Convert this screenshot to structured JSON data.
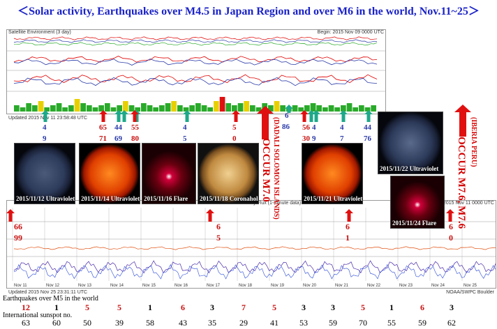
{
  "title": "＜Solar activity, Earthquakes over M4.5 in Japan Region and over M6 in the world, Nov.11~25＞",
  "top_panel": {
    "header_left": "Satellite Environment (3 day)",
    "header_right": "Begin: 2015 Nov 09 0000 UTC",
    "updated": "Updated 2015 Nov 11 23:58:48 UTC"
  },
  "bottom_panel": {
    "header_left": "GOES Xray Flux (1-minute data)",
    "header_right": "Begin: 2015 Nov 11 0000 UTC",
    "updated": "Updated 2015 Nov 25 23:31:11 UTC",
    "credit": "NOAA/SWPC Boulder"
  },
  "daily_pairs": [
    {
      "top": "4",
      "bottom": "9",
      "color": "blue"
    },
    {
      "top": "65",
      "bottom": "71",
      "color": "red"
    },
    {
      "top": "44",
      "bottom": "69",
      "color": "blue"
    },
    {
      "top": "55",
      "bottom": "80",
      "color": "red"
    },
    {
      "top": "4",
      "bottom": "5",
      "color": "blue"
    },
    {
      "top": "5",
      "bottom": "0",
      "color": "red"
    },
    {
      "top": "6",
      "bottom": "86",
      "color": "blue"
    },
    {
      "top": "56",
      "bottom": "30",
      "color": "red"
    },
    {
      "top": "4",
      "bottom": "9",
      "color": "blue"
    },
    {
      "top": "4",
      "bottom": "7",
      "color": "blue"
    },
    {
      "top": "44",
      "bottom": "76",
      "color": "blue"
    }
  ],
  "bottom_pairs": [
    {
      "top": "66",
      "bottom": "99",
      "color": "red"
    },
    {
      "top": "6",
      "bottom": "5",
      "color": "red"
    },
    {
      "top": "6",
      "bottom": "1",
      "color": "red"
    },
    {
      "top": "6",
      "bottom": "0",
      "color": "red"
    }
  ],
  "events": [
    {
      "text": "OCCUR M7.0",
      "location": "(DADALI SOLOMON ISLANDS)"
    },
    {
      "text": "OCCUR M7.6, M7.6",
      "location": "(IBERIA PERU)"
    }
  ],
  "images": [
    {
      "caption": "2015/11/12 Ultraviolet",
      "kind": "uv"
    },
    {
      "caption": "2015/11/14 Ultraviolet",
      "kind": "red"
    },
    {
      "caption": "2015/11/16 Flare",
      "kind": "flare"
    },
    {
      "caption": "2015/11/18 Coronahole",
      "kind": "corona"
    },
    {
      "caption": "2015/11/21 Ultraviolet",
      "kind": "red"
    },
    {
      "caption": "2015/11/22 Ultraviolet",
      "kind": "uv"
    },
    {
      "caption": "2015/11/24 Flare",
      "kind": "flare"
    }
  ],
  "chart_data": {
    "type": "table",
    "row_labels": [
      "Earthquakes over M5 in the world",
      "International sunspot no."
    ],
    "days": [
      "Nov 11",
      "Nov 12",
      "Nov 13",
      "Nov 14",
      "Nov 15",
      "Nov 16",
      "Nov 17",
      "Nov 18",
      "Nov 19",
      "Nov 20",
      "Nov 21",
      "Nov 22",
      "Nov 23",
      "Nov 24",
      "Nov 25"
    ],
    "earthquakes": [
      12,
      1,
      5,
      5,
      1,
      6,
      3,
      7,
      5,
      3,
      3,
      5,
      1,
      6,
      3
    ],
    "earthquake_highlight": [
      true,
      false,
      true,
      true,
      false,
      true,
      false,
      true,
      true,
      false,
      false,
      true,
      false,
      true,
      false
    ],
    "sunspot": [
      63,
      60,
      50,
      39,
      58,
      43,
      35,
      29,
      41,
      53,
      59,
      70,
      55,
      59,
      62
    ],
    "x_axis_labels": [
      "Nov 11",
      "Nov 12",
      "Nov 13",
      "Nov 14",
      "Nov 15",
      "Nov 16",
      "Nov 17",
      "Nov 18",
      "Nov 19",
      "Nov 20",
      "Nov 21",
      "Nov 22",
      "Nov 23",
      "Nov 24",
      "Nov 25"
    ],
    "kp_bars": [
      3,
      2,
      4,
      3,
      5,
      2,
      3,
      4,
      2,
      3,
      6,
      4,
      3,
      2,
      3,
      4,
      2,
      3,
      5,
      3,
      2,
      4,
      3,
      2,
      3,
      4,
      5,
      3,
      2,
      3,
      4,
      3,
      2,
      5,
      7,
      4,
      3,
      4,
      5,
      3,
      2,
      4,
      3,
      5,
      3,
      2,
      3,
      2,
      3,
      4,
      3,
      2,
      3,
      2,
      3,
      4,
      2,
      3,
      2,
      3
    ],
    "colors": {
      "title": "#1a22c8",
      "red": "#c81010",
      "blue": "#2a3aa8",
      "green": "#2aaa2a",
      "yellow": "#e8d000",
      "kp_red": "#e01010"
    }
  }
}
